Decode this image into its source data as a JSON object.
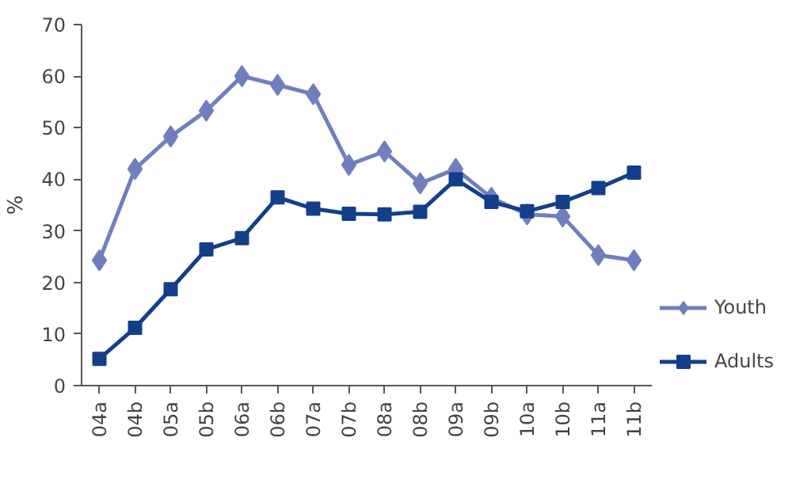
{
  "chart_data": {
    "type": "line",
    "ylabel": "%",
    "categories": [
      "04a",
      "04b",
      "05a",
      "05b",
      "06a",
      "06b",
      "07a",
      "07b",
      "08a",
      "08b",
      "09a",
      "09b",
      "10a",
      "10b",
      "11a",
      "11b"
    ],
    "series": [
      {
        "name": "Youth",
        "color": "#6f7fbd",
        "marker": "diamond",
        "values": [
          24.3,
          42,
          48.3,
          53.3,
          60,
          58.3,
          56.5,
          42.8,
          45.4,
          39.2,
          42,
          36.4,
          33.2,
          32.8,
          25.3,
          24.3
        ]
      },
      {
        "name": "Adults",
        "color": "#133f8a",
        "marker": "square",
        "values": [
          5.2,
          11.2,
          18.7,
          26.4,
          28.6,
          36.5,
          34.3,
          33.3,
          33.2,
          33.7,
          40,
          35.6,
          33.8,
          35.6,
          38.3,
          41.3
        ]
      }
    ],
    "ylim": [
      0,
      70
    ],
    "yticks": [
      0,
      10,
      20,
      30,
      40,
      50,
      60,
      70
    ],
    "grid": false,
    "legend": "right",
    "line_style": "solid"
  }
}
